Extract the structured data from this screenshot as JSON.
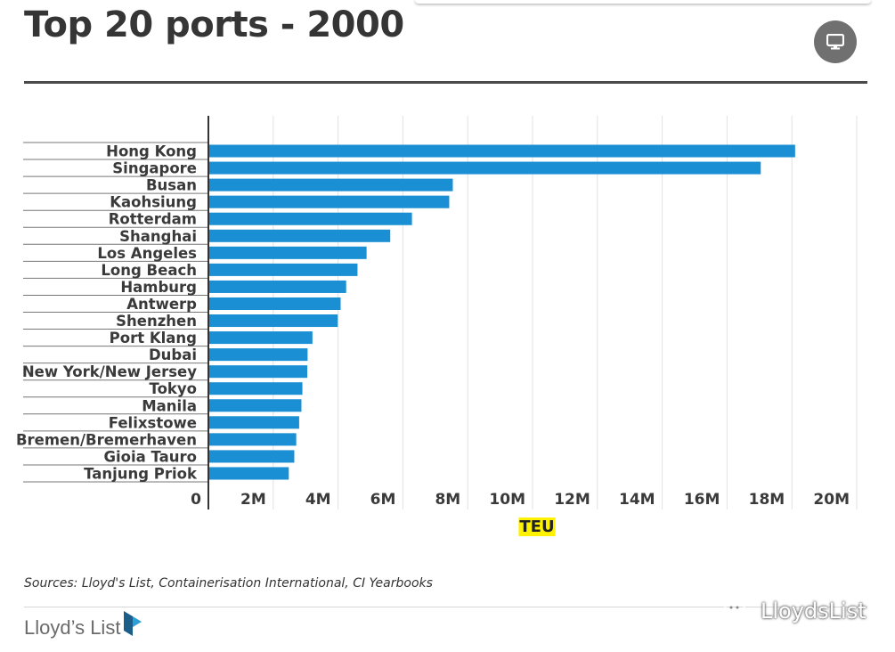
{
  "header": {
    "title": "Top 20 ports - 2000",
    "present_icon": "presentation-icon"
  },
  "chart_data": {
    "type": "bar",
    "orientation": "horizontal",
    "categories": [
      "Hong Kong",
      "Singapore",
      "Busan",
      "Kaohsiung",
      "Rotterdam",
      "Shanghai",
      "Los Angeles",
      "Long Beach",
      "Hamburg",
      "Antwerp",
      "Shenzhen",
      "Port Klang",
      "Dubai",
      "New York/New Jersey",
      "Tokyo",
      "Manila",
      "Felixstowe",
      "Bremen/Bremerhaven",
      "Gioia Tauro",
      "Tanjung Priok"
    ],
    "values": [
      18100000,
      17040000,
      7540000,
      7430000,
      6280000,
      5610000,
      4880000,
      4600000,
      4250000,
      4080000,
      3990000,
      3210000,
      3060000,
      3050000,
      2900000,
      2870000,
      2800000,
      2710000,
      2650000,
      2480000
    ],
    "xlabel": "TEU",
    "xlim": [
      0,
      20000000
    ],
    "ticks": [
      0,
      2000000,
      4000000,
      6000000,
      8000000,
      10000000,
      12000000,
      14000000,
      16000000,
      18000000,
      20000000
    ],
    "tick_labels": [
      "0",
      "2M",
      "4M",
      "6M",
      "8M",
      "10M",
      "12M",
      "14M",
      "16M",
      "18M",
      "20M"
    ],
    "bar_color": "#1a8fd4",
    "xlabel_highlight": "#fff200",
    "grid": true,
    "legend": "none"
  },
  "footer": {
    "source": "Sources: Lloyd's List, Containerisation International, CI Yearbooks",
    "logo_text": "Lloyd’s List",
    "watermark": "LloydsList",
    "watermark_icon": "wechat-icon",
    "logo_icon": "lloyds-list-logo-icon"
  }
}
